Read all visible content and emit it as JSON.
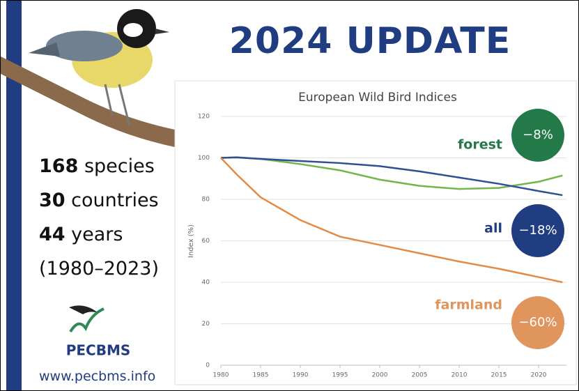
{
  "title": "2024 UPDATE",
  "stats": [
    {
      "number": 168,
      "label": "species"
    },
    {
      "number": 30,
      "label": "countries"
    },
    {
      "number": 44,
      "label": "years"
    }
  ],
  "period": "(1980–2023)",
  "logo": "PECBMS",
  "website": "www.pecbms.info",
  "chart_data": {
    "type": "line",
    "title": "European Wild Bird Indices",
    "y_label": "Index (%)",
    "x": [
      1980,
      1982,
      1985,
      1990,
      1995,
      2000,
      2005,
      2010,
      2015,
      2020,
      2023
    ],
    "xlim": [
      1980,
      2023.5
    ],
    "xticks": [
      1980,
      1985,
      1990,
      1995,
      2000,
      2005,
      2010,
      2015,
      2020
    ],
    "ylim": [
      0,
      120
    ],
    "yticks": [
      0,
      20,
      40,
      60,
      80,
      100,
      120
    ],
    "grid": true,
    "series": [
      {
        "name": "forest",
        "color": "#72b548",
        "badge_color": "#237a48",
        "change": -8,
        "change_label": "−8%",
        "values": [
          100,
          100.3,
          99.5,
          97,
          94,
          89.5,
          86.5,
          85,
          85.5,
          88.5,
          91.5
        ]
      },
      {
        "name": "all",
        "color": "#2f4f93",
        "badge_color": "#1f3d80",
        "change": -18,
        "change_label": "−18%",
        "values": [
          100,
          100.2,
          99.5,
          98.5,
          97.5,
          96,
          93.5,
          90.5,
          87.5,
          84,
          82
        ]
      },
      {
        "name": "farmland",
        "color": "#e38b45",
        "badge_color": "#e0955c",
        "change": -60,
        "change_label": "−60%",
        "values": [
          100,
          92,
          81,
          70,
          62,
          58,
          54,
          50,
          46.5,
          42.5,
          40
        ]
      }
    ]
  }
}
